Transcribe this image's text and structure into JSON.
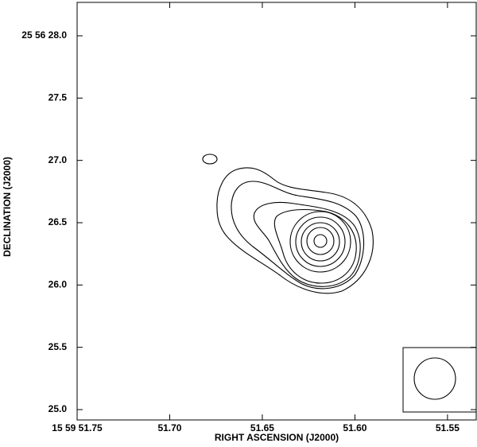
{
  "chart_data": {
    "type": "contour",
    "x_label": "RIGHT ASCENSION (J2000)",
    "y_label": "DECLINATION (J2000)",
    "xlim": [
      51.75,
      51.5345
    ],
    "ylim": [
      24.917,
      28.268
    ],
    "xticks": [
      {
        "value": 51.75,
        "label": "15 59 51.75"
      },
      {
        "value": 51.7,
        "label": "51.70"
      },
      {
        "value": 51.65,
        "label": "51.65"
      },
      {
        "value": 51.6,
        "label": "51.60"
      },
      {
        "value": 51.55,
        "label": "51.55"
      }
    ],
    "yticks": [
      {
        "value": 28.0,
        "label": "25 56 28.0"
      },
      27.5,
      {
        "value": 27.0,
        "label": "27.0"
      },
      26.5,
      {
        "value": 26.0,
        "label": "26.0"
      },
      25.5,
      {
        "value": 25.0,
        "label": "25.0"
      }
    ]
  }
}
